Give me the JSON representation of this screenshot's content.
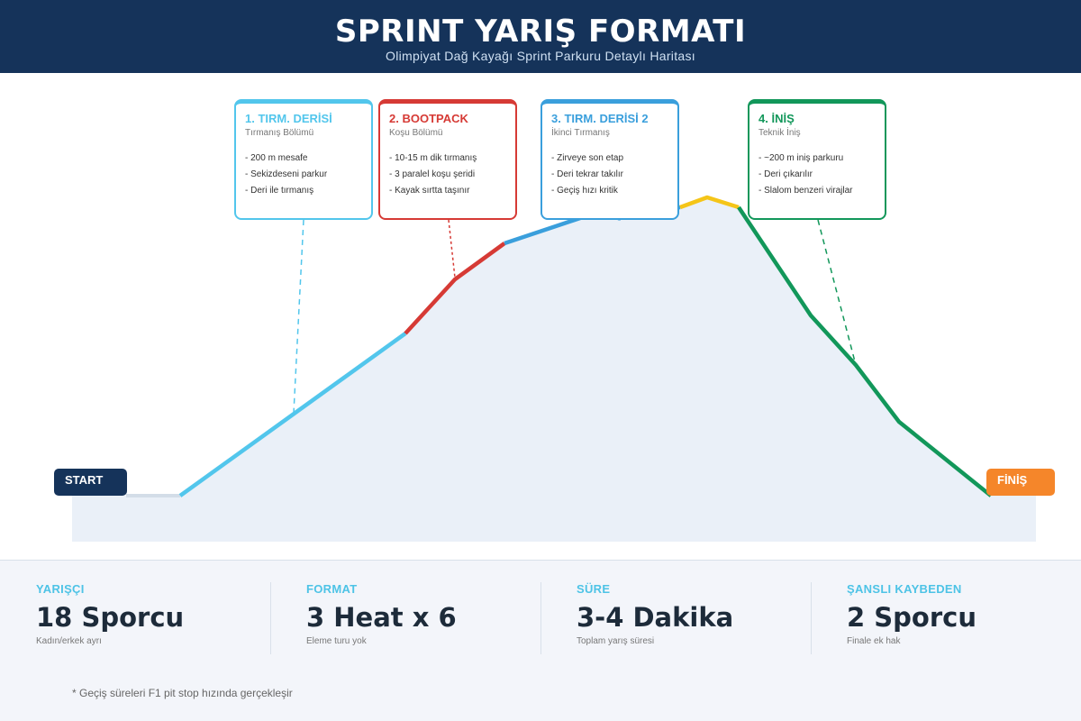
{
  "header": {
    "title": "SPRINT YARIŞ FORMATI",
    "subtitle": "Olimpiyat Dağ Kayağı Sprint Parkuru Detaylı Haritası"
  },
  "colors": {
    "header_bg": "#15335a",
    "segment1": "#52c6ec",
    "segment2": "#d63a35",
    "segment3": "#3a9fdc",
    "summit": "#f5c518",
    "segment4": "#12975a",
    "finish": "#f5862a",
    "mountain_fill": "#eaf0f8"
  },
  "sections": [
    {
      "title": "1. TIRM. DERİSİ",
      "subtitle": "Tırmanış Bölümü",
      "items": [
        "- 200 m mesafe",
        "- Sekizdeseni parkur",
        "- Deri ile tırmanış"
      ]
    },
    {
      "title": "2. BOOTPACK",
      "subtitle": "Koşu Bölümü",
      "items": [
        "- 10-15 m dik tırmanış",
        "- 3 paralel koşu şeridi",
        "- Kayak sırtta taşınır"
      ]
    },
    {
      "title": "3. TIRM. DERİSİ 2",
      "subtitle": "İkinci Tırmanış",
      "items": [
        "- Zirveye son etap",
        "- Deri tekrar takılır",
        "- Geçiş hızı kritik"
      ]
    },
    {
      "title": "4. İNİŞ",
      "subtitle": "Teknik İniş",
      "items": [
        "- ~200 m iniş parkuru",
        "- Deri çıkarılır",
        "- Slalom benzeri virajlar"
      ]
    }
  ],
  "markers": {
    "start": "START",
    "finish": "FİNİŞ"
  },
  "stats": [
    {
      "label": "YARIŞÇI",
      "value": "18 Sporcu",
      "desc": "Kadın/erkek ayrı"
    },
    {
      "label": "FORMAT",
      "value": "3 Heat x 6",
      "desc": "Eleme turu yok"
    },
    {
      "label": "SÜRE",
      "value": "3-4 Dakika",
      "desc": "Toplam yarış süresi"
    },
    {
      "label": "ŞANSLI KAYBEDEN",
      "value": "2 Sporcu",
      "desc": "Finale ek hak"
    }
  ],
  "footnote": "* Geçiş süreleri F1 pit stop hızında gerçekleşir"
}
